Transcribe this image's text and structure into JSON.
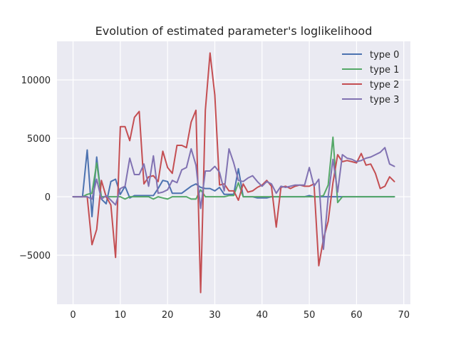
{
  "chart_data": {
    "type": "line",
    "title": "Evolution of estimated parameter's loglikelihood",
    "xlabel": "",
    "ylabel": "",
    "xlim": [
      -3.4,
      71.4
    ],
    "ylim": [
      -9200,
      13300
    ],
    "xticks": [
      0,
      10,
      20,
      30,
      40,
      50,
      60,
      70
    ],
    "xtick_labels": [
      "0",
      "10",
      "20",
      "30",
      "40",
      "50",
      "60",
      "70"
    ],
    "yticks": [
      -5000,
      0,
      5000,
      10000
    ],
    "ytick_labels": [
      "−5000",
      "0",
      "5000",
      "10000"
    ],
    "grid": true,
    "legend_position": "top-right",
    "x": [
      0,
      1,
      2,
      3,
      4,
      5,
      6,
      7,
      8,
      9,
      10,
      11,
      12,
      13,
      14,
      15,
      16,
      17,
      18,
      19,
      20,
      21,
      22,
      23,
      24,
      25,
      26,
      27,
      28,
      29,
      30,
      31,
      32,
      33,
      34,
      35,
      36,
      37,
      38,
      39,
      40,
      41,
      42,
      43,
      44,
      45,
      46,
      47,
      48,
      49,
      50,
      51,
      52,
      53,
      54,
      55,
      56,
      57,
      58,
      59,
      60,
      61,
      62,
      63,
      64,
      65,
      66,
      67,
      68
    ],
    "series": [
      {
        "name": "type 0",
        "color": "#4c72b0",
        "values": [
          0,
          0,
          0,
          4000,
          -1700,
          3400,
          -200,
          -600,
          1300,
          1500,
          200,
          900,
          -100,
          100,
          100,
          100,
          100,
          100,
          700,
          1400,
          1300,
          300,
          300,
          300,
          600,
          900,
          1100,
          800,
          700,
          700,
          500,
          800,
          200,
          200,
          200,
          2400,
          0,
          0,
          0,
          -100,
          -100,
          -100,
          0,
          0,
          0,
          0,
          0,
          0,
          0,
          0,
          100,
          0,
          0,
          0,
          0,
          0,
          0,
          0,
          0,
          0,
          0,
          0,
          0,
          0,
          0,
          0,
          0,
          0,
          0
        ]
      },
      {
        "name": "type 1",
        "color": "#55a868",
        "values": [
          0,
          0,
          0,
          200,
          300,
          2900,
          0,
          0,
          0,
          0,
          0,
          -200,
          0,
          0,
          0,
          0,
          0,
          -200,
          0,
          -100,
          -200,
          0,
          0,
          0,
          0,
          -200,
          -200,
          600,
          0,
          0,
          0,
          0,
          0,
          100,
          100,
          1200,
          0,
          0,
          0,
          0,
          0,
          0,
          0,
          0,
          0,
          0,
          0,
          0,
          0,
          0,
          0,
          0,
          0,
          100,
          1000,
          5100,
          -500,
          0,
          0,
          0,
          0,
          0,
          0,
          0,
          0,
          0,
          0,
          0,
          0
        ]
      },
      {
        "name": "type 2",
        "color": "#c44e52",
        "values": [
          0,
          0,
          0,
          0,
          -4100,
          -2800,
          1400,
          0,
          -700,
          -5200,
          6000,
          6000,
          4800,
          6800,
          7300,
          1100,
          1700,
          1800,
          1300,
          3900,
          2500,
          2000,
          4400,
          4400,
          4200,
          6400,
          7400,
          -8200,
          7400,
          12300,
          8700,
          1000,
          1100,
          500,
          500,
          -300,
          1100,
          400,
          500,
          800,
          1000,
          1400,
          900,
          -2600,
          800,
          900,
          700,
          900,
          1000,
          900,
          900,
          1100,
          -5900,
          -3600,
          -2100,
          1200,
          3600,
          3000,
          3100,
          3000,
          2900,
          3700,
          2700,
          2800,
          2000,
          700,
          900,
          1700,
          1300
        ]
      },
      {
        "name": "type 3",
        "color": "#8172b2",
        "values": [
          0,
          0,
          0,
          0,
          -200,
          1500,
          -200,
          100,
          -300,
          -700,
          700,
          900,
          3300,
          1900,
          1900,
          2800,
          900,
          3500,
          300,
          400,
          600,
          1400,
          1200,
          2300,
          2500,
          4100,
          2700,
          -1000,
          2200,
          2200,
          2600,
          2100,
          500,
          4100,
          2900,
          1400,
          1300,
          1600,
          1800,
          1300,
          900,
          1300,
          1100,
          300,
          900,
          800,
          900,
          1000,
          1000,
          1000,
          2500,
          900,
          1500,
          -4500,
          0,
          3200,
          400,
          3600,
          3300,
          3200,
          3000,
          3100,
          3300,
          3400,
          3600,
          3800,
          4200,
          2800,
          2600
        ]
      }
    ]
  }
}
